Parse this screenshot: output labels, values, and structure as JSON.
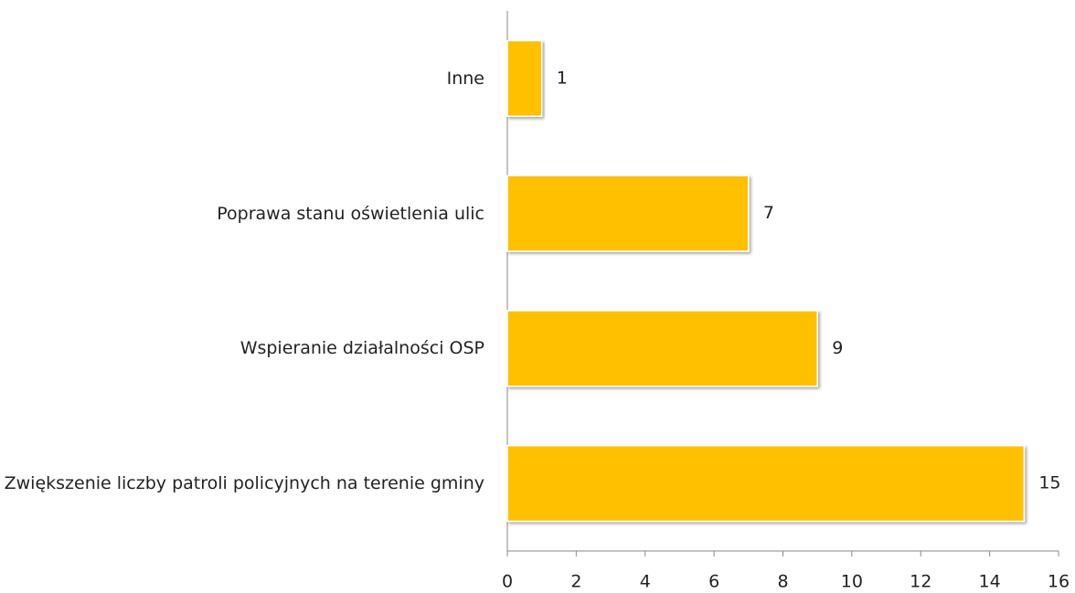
{
  "chart_data": {
    "type": "bar",
    "orientation": "horizontal",
    "categories": [
      "Inne",
      "Poprawa stanu oświetlenia ulic",
      "Wspieranie działalności OSP",
      "Zwiększenie liczby patroli policyjnych na terenie gminy"
    ],
    "values": [
      1,
      7,
      9,
      15
    ],
    "color": "#ffc000",
    "xlim": [
      0,
      16
    ],
    "xticks": [
      0,
      2,
      4,
      6,
      8,
      10,
      12,
      14,
      16
    ],
    "grid": false
  }
}
